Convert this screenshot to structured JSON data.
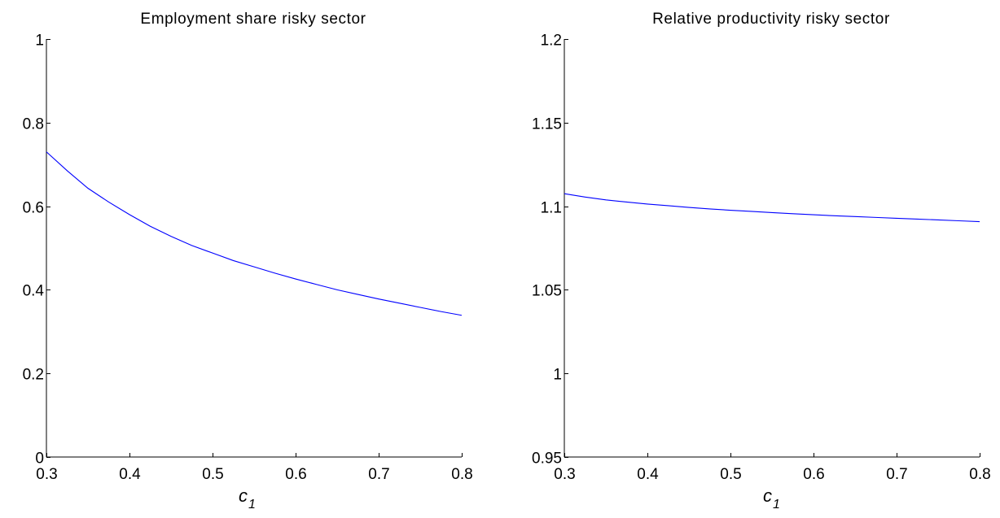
{
  "chart_data": [
    {
      "type": "line",
      "title": "Employment share risky sector",
      "xlabel": "c",
      "xlabel_subscript": "1",
      "ylabel": "",
      "xlim": [
        0.3,
        0.8
      ],
      "ylim": [
        0,
        1
      ],
      "xticks": [
        0.3,
        0.4,
        0.5,
        0.6,
        0.7,
        0.8
      ],
      "yticks": [
        0,
        0.2,
        0.4,
        0.6,
        0.8,
        1
      ],
      "xtick_labels": [
        "0.3",
        "0.4",
        "0.5",
        "0.6",
        "0.7",
        "0.8"
      ],
      "ytick_labels": [
        "0",
        "0.2",
        "0.4",
        "0.6",
        "0.8",
        "1"
      ],
      "grid": false,
      "series": [
        {
          "color": "#0000ff",
          "x": [
            0.3,
            0.325,
            0.35,
            0.375,
            0.4,
            0.425,
            0.45,
            0.475,
            0.5,
            0.525,
            0.55,
            0.575,
            0.6,
            0.625,
            0.65,
            0.675,
            0.7,
            0.725,
            0.75,
            0.775,
            0.8
          ],
          "y": [
            0.73,
            0.685,
            0.643,
            0.61,
            0.58,
            0.552,
            0.528,
            0.506,
            0.488,
            0.47,
            0.455,
            0.44,
            0.426,
            0.413,
            0.4,
            0.389,
            0.378,
            0.368,
            0.358,
            0.348,
            0.339
          ]
        }
      ]
    },
    {
      "type": "line",
      "title": "Relative productivity risky sector",
      "xlabel": "c",
      "xlabel_subscript": "1",
      "ylabel": "",
      "xlim": [
        0.3,
        0.8
      ],
      "ylim": [
        0.95,
        1.2
      ],
      "xticks": [
        0.3,
        0.4,
        0.5,
        0.6,
        0.7,
        0.8
      ],
      "yticks": [
        0.95,
        1,
        1.05,
        1.1,
        1.15,
        1.2
      ],
      "xtick_labels": [
        "0.3",
        "0.4",
        "0.5",
        "0.6",
        "0.7",
        "0.8"
      ],
      "ytick_labels": [
        "0.95",
        "1",
        "1.05",
        "1.1",
        "1.15",
        "1.2"
      ],
      "grid": false,
      "series": [
        {
          "color": "#0000ff",
          "x": [
            0.3,
            0.325,
            0.35,
            0.375,
            0.4,
            0.425,
            0.45,
            0.475,
            0.5,
            0.525,
            0.55,
            0.575,
            0.6,
            0.625,
            0.65,
            0.675,
            0.7,
            0.725,
            0.75,
            0.775,
            0.8
          ],
          "y": [
            1.1075,
            1.1055,
            1.1038,
            1.1025,
            1.1013,
            1.1003,
            1.0993,
            1.0984,
            1.0976,
            1.0969,
            1.0962,
            1.0955,
            1.0949,
            1.0943,
            1.0938,
            1.0933,
            1.0928,
            1.0923,
            1.0918,
            1.0913,
            1.0908
          ]
        }
      ]
    }
  ]
}
